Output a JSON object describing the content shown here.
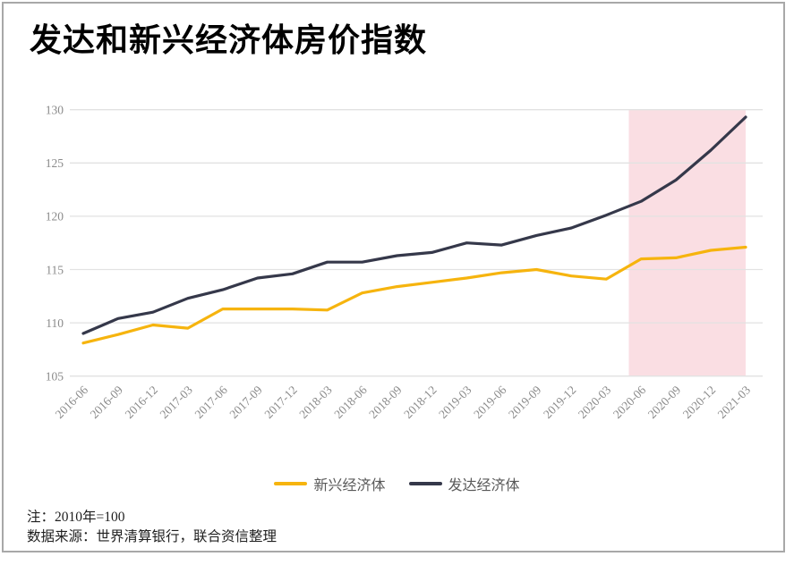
{
  "title": "发达和新兴经济体房价指数",
  "notes": {
    "note": "注：2010年=100",
    "source": "数据来源：世界清算银行，联合资信整理"
  },
  "chart_data": {
    "type": "line",
    "title": "发达和新兴经济体房价指数",
    "categories": [
      "2016-06",
      "2016-09",
      "2016-12",
      "2017-03",
      "2017-06",
      "2017-09",
      "2017-12",
      "2018-03",
      "2018-06",
      "2018-09",
      "2018-12",
      "2019-03",
      "2019-06",
      "2019-09",
      "2019-12",
      "2020-03",
      "2020-06",
      "2020-09",
      "2020-12",
      "2021-03"
    ],
    "series": [
      {
        "name": "新兴经济体",
        "color": "#F6B40E",
        "values": [
          108.1,
          108.9,
          109.8,
          109.5,
          111.3,
          111.3,
          111.3,
          111.2,
          112.8,
          113.4,
          113.8,
          114.2,
          114.7,
          115.0,
          114.4,
          114.1,
          116.0,
          116.1,
          116.8,
          117.1
        ]
      },
      {
        "name": "发达经济体",
        "color": "#35384A",
        "values": [
          109.0,
          110.4,
          111.0,
          112.3,
          113.1,
          114.2,
          114.6,
          115.7,
          115.7,
          116.3,
          116.6,
          117.5,
          117.3,
          118.2,
          118.9,
          120.1,
          121.4,
          123.4,
          126.2,
          129.3
        ]
      }
    ],
    "ylim": [
      105,
      130
    ],
    "yticks": [
      105,
      110,
      115,
      120,
      125,
      130
    ],
    "grid": "horizontal",
    "gridline_color": "#e2e2e2",
    "tick_label_color": "#8a8a8a",
    "legend_position": "bottom-center",
    "highlight_band": {
      "color": "#FADEE3",
      "x_from": "2020-06",
      "x_to": "2021-03",
      "from_index": 15.65,
      "to_index": 19
    }
  }
}
